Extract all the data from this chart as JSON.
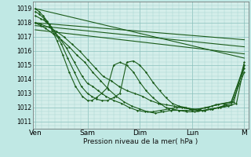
{
  "background_color": "#c0e8e4",
  "plot_bg_color": "#d4eeea",
  "grid_color_minor": "#a8d4d0",
  "grid_color_major": "#88c0bc",
  "line_color": "#1a5c1a",
  "xlabel": "Pression niveau de la mer( hPa )",
  "xtick_labels": [
    "Ven",
    "Sam",
    "Dim",
    "Lun",
    "M"
  ],
  "xtick_positions": [
    0,
    1,
    2,
    3,
    4
  ],
  "ylim": [
    1010.5,
    1019.5
  ],
  "yticks": [
    1011,
    1012,
    1013,
    1014,
    1015,
    1016,
    1017,
    1018,
    1019
  ],
  "series": [
    {
      "x": [
        0.0,
        4.0
      ],
      "y": [
        1019.0,
        1015.5
      ],
      "marker": false,
      "linewidth": 0.8
    },
    {
      "x": [
        0.0,
        4.0
      ],
      "y": [
        1018.0,
        1016.8
      ],
      "marker": false,
      "linewidth": 0.8
    },
    {
      "x": [
        0.0,
        4.0
      ],
      "y": [
        1017.8,
        1016.3
      ],
      "marker": false,
      "linewidth": 0.8
    },
    {
      "x": [
        0.0,
        4.0
      ],
      "y": [
        1017.5,
        1015.8
      ],
      "marker": false,
      "linewidth": 0.8
    },
    {
      "x": [
        0.0,
        0.1,
        0.25,
        0.4,
        0.55,
        0.7,
        0.85,
        1.0,
        1.15,
        1.3,
        1.45,
        1.6,
        1.75,
        1.9,
        2.05,
        2.2,
        2.35,
        2.5,
        2.65,
        2.8,
        2.95,
        3.1,
        3.25,
        3.4,
        3.55,
        3.7,
        3.85,
        4.0
      ],
      "y": [
        1018.0,
        1017.9,
        1017.7,
        1017.4,
        1017.0,
        1016.5,
        1016.0,
        1015.4,
        1014.8,
        1014.2,
        1013.9,
        1013.5,
        1013.2,
        1013.0,
        1012.8,
        1012.5,
        1012.3,
        1012.2,
        1012.1,
        1012.0,
        1011.9,
        1011.8,
        1011.8,
        1011.9,
        1012.0,
        1012.1,
        1012.3,
        1015.0
      ],
      "marker": true,
      "linewidth": 0.8
    },
    {
      "x": [
        0.0,
        0.1,
        0.2,
        0.35,
        0.5,
        0.65,
        0.8,
        0.95,
        1.1,
        1.25,
        1.4,
        1.55,
        1.7,
        1.85,
        2.0,
        2.15,
        2.3,
        2.45,
        2.6,
        2.75,
        2.9,
        3.05,
        3.2,
        3.35,
        3.5,
        3.65,
        3.8,
        4.0
      ],
      "y": [
        1018.0,
        1017.8,
        1017.6,
        1017.2,
        1016.8,
        1016.3,
        1015.7,
        1015.2,
        1014.5,
        1013.9,
        1013.3,
        1012.8,
        1012.4,
        1012.1,
        1011.9,
        1011.7,
        1011.6,
        1011.7,
        1011.8,
        1011.8,
        1011.7,
        1011.7,
        1011.8,
        1011.9,
        1012.0,
        1012.2,
        1012.4,
        1015.2
      ],
      "marker": true,
      "linewidth": 0.8
    },
    {
      "x": [
        0.0,
        0.1,
        0.2,
        0.3,
        0.45,
        0.6,
        0.75,
        0.9,
        1.0,
        1.1,
        1.2,
        1.35,
        1.5,
        1.65,
        1.8,
        1.95,
        2.1,
        2.25,
        2.4,
        2.55,
        2.7,
        2.85,
        3.0,
        3.15,
        3.3,
        3.45,
        3.6,
        3.75,
        4.0
      ],
      "y": [
        1018.5,
        1018.3,
        1018.1,
        1017.7,
        1017.0,
        1016.2,
        1015.2,
        1014.2,
        1013.7,
        1013.5,
        1013.2,
        1012.8,
        1012.5,
        1012.3,
        1012.0,
        1011.8,
        1011.7,
        1011.7,
        1011.8,
        1011.9,
        1012.0,
        1012.0,
        1011.9,
        1011.9,
        1012.0,
        1012.2,
        1012.3,
        1012.4,
        1014.8
      ],
      "marker": true,
      "linewidth": 0.8
    },
    {
      "x": [
        0.0,
        0.08,
        0.17,
        0.27,
        0.38,
        0.5,
        0.62,
        0.75,
        0.88,
        1.0,
        1.08,
        1.17,
        1.27,
        1.38,
        1.5,
        1.62,
        1.75,
        1.88,
        2.0,
        2.12,
        2.25,
        2.38,
        2.5,
        2.62,
        2.75,
        2.88,
        3.0,
        3.12,
        3.25,
        3.38,
        3.5,
        3.62,
        3.75,
        4.0
      ],
      "y": [
        1018.8,
        1018.6,
        1018.3,
        1017.9,
        1017.3,
        1016.5,
        1015.5,
        1014.5,
        1013.5,
        1013.0,
        1012.8,
        1012.6,
        1012.5,
        1012.5,
        1012.7,
        1013.0,
        1015.2,
        1015.3,
        1015.0,
        1014.5,
        1013.8,
        1013.2,
        1012.7,
        1012.3,
        1012.1,
        1012.0,
        1011.9,
        1011.8,
        1011.8,
        1011.9,
        1012.0,
        1012.1,
        1012.2,
        1014.5
      ],
      "marker": true,
      "linewidth": 0.8
    },
    {
      "x": [
        0.0,
        0.07,
        0.15,
        0.23,
        0.32,
        0.42,
        0.53,
        0.65,
        0.77,
        0.9,
        1.0,
        1.08,
        1.17,
        1.27,
        1.38,
        1.5,
        1.62,
        1.75,
        1.88,
        2.0,
        2.12,
        2.25,
        2.38,
        2.5,
        2.62,
        2.75,
        2.88,
        3.0,
        3.12,
        3.25,
        3.38,
        3.5,
        3.62,
        3.75,
        4.0
      ],
      "y": [
        1019.0,
        1018.8,
        1018.5,
        1018.1,
        1017.5,
        1016.7,
        1015.7,
        1014.5,
        1013.5,
        1012.8,
        1012.5,
        1012.5,
        1012.7,
        1013.0,
        1013.4,
        1015.0,
        1015.2,
        1015.0,
        1014.5,
        1013.8,
        1013.2,
        1012.7,
        1012.3,
        1012.0,
        1011.9,
        1011.8,
        1011.8,
        1011.8,
        1011.9,
        1012.0,
        1012.1,
        1012.2,
        1012.3,
        1012.4,
        1015.0
      ],
      "marker": true,
      "linewidth": 0.8
    }
  ]
}
